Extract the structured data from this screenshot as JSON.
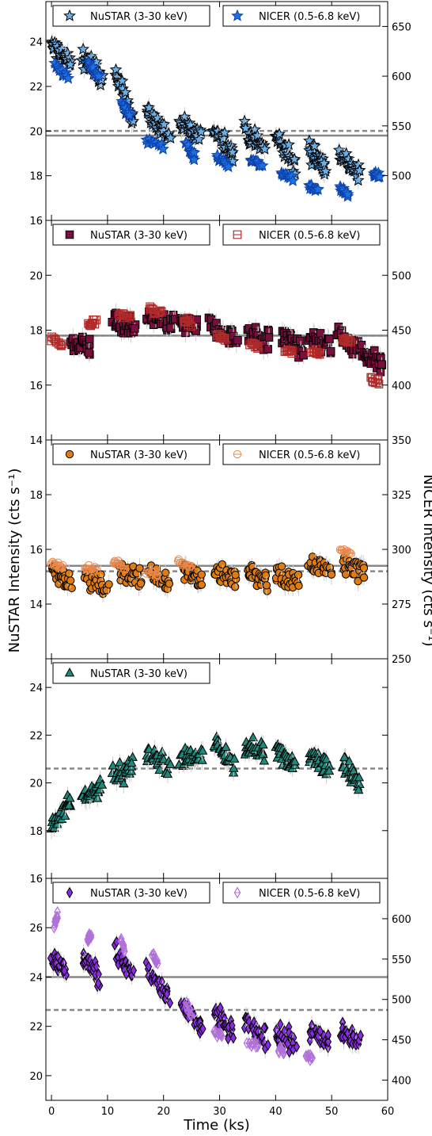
{
  "figure": {
    "ylabel_left": "NuSTAR Intensity (cts s⁻¹)",
    "ylabel_right": "NICER Intensity (cts s⁻¹)",
    "xlabel": "Time (ks)"
  },
  "colors": {
    "nustar": [
      "#6aaee6",
      "#7a0e3c",
      "#e07b10",
      "#1f8a7c",
      "#8a2be2"
    ],
    "nicer": [
      "#1f6fe0",
      "#b02a2a",
      "#e8874a",
      "",
      "#b070d8"
    ],
    "mean_line": "#888888",
    "error_bar": "#cfcfcf"
  },
  "chart_data": [
    {
      "type": "scatter",
      "marker": "star",
      "xlim": [
        -1,
        60
      ],
      "ylim": [
        16,
        25.8
      ],
      "yticks": [
        16,
        18,
        20,
        22,
        24
      ],
      "y2lim": [
        455,
        675
      ],
      "y2ticks": [
        500,
        550,
        600,
        650
      ],
      "xticks": [
        0,
        10,
        20,
        30,
        40,
        50,
        60
      ],
      "legend": {
        "placement": "top",
        "nustar": "NuSTAR (3-30 keV)",
        "nicer": "NICER (0.5-6.8 keV)"
      },
      "nustar_mean": 19.8,
      "nicer_mean_dashed": 545,
      "nustar_segments": [
        {
          "x": [
            0,
            3.5
          ],
          "y": [
            23.8,
            23.0
          ]
        },
        {
          "x": [
            5.5,
            9
          ],
          "y": [
            23.4,
            22.4
          ]
        },
        {
          "x": [
            11.5,
            14.5
          ],
          "y": [
            22.4,
            20.6
          ]
        },
        {
          "x": [
            17,
            21
          ],
          "y": [
            20.8,
            19.8
          ]
        },
        {
          "x": [
            23,
            26.5
          ],
          "y": [
            20.4,
            19.6
          ]
        },
        {
          "x": [
            29,
            32.5
          ],
          "y": [
            20.2,
            19.0
          ]
        },
        {
          "x": [
            34.5,
            38
          ],
          "y": [
            20.0,
            19.2
          ]
        },
        {
          "x": [
            40,
            43.5
          ],
          "y": [
            19.8,
            18.4
          ]
        },
        {
          "x": [
            46,
            49
          ],
          "y": [
            19.2,
            18.4
          ]
        },
        {
          "x": [
            51.5,
            55
          ],
          "y": [
            19.0,
            18.0
          ]
        }
      ],
      "nicer_segments": [
        {
          "x": [
            0.5,
            3
          ],
          "y": [
            612,
            598
          ]
        },
        {
          "x": [
            6.5,
            8.5
          ],
          "y": [
            612,
            600
          ]
        },
        {
          "x": [
            12.5,
            14
          ],
          "y": [
            575,
            560
          ]
        },
        {
          "x": [
            17,
            20
          ],
          "y": [
            536,
            530
          ]
        },
        {
          "x": [
            24,
            25.5
          ],
          "y": [
            532,
            518
          ]
        },
        {
          "x": [
            29.5,
            31.5
          ],
          "y": [
            518,
            512
          ]
        },
        {
          "x": [
            35.5,
            37.5
          ],
          "y": [
            516,
            510
          ]
        },
        {
          "x": [
            41,
            43
          ],
          "y": [
            502,
            498
          ]
        },
        {
          "x": [
            46,
            47.5
          ],
          "y": [
            490,
            486
          ]
        },
        {
          "x": [
            51.5,
            53
          ],
          "y": [
            486,
            480
          ]
        },
        {
          "x": [
            57.5,
            58.5
          ],
          "y": [
            500,
            500
          ]
        }
      ]
    },
    {
      "type": "scatter",
      "marker": "square",
      "xlim": [
        -1,
        60
      ],
      "ylim": [
        14,
        22
      ],
      "yticks": [
        14,
        16,
        18,
        20
      ],
      "y2lim": [
        350,
        550
      ],
      "y2ticks": [
        350,
        400,
        450,
        500
      ],
      "xticks": [
        0,
        10,
        20,
        30,
        40,
        50,
        60
      ],
      "legend": {
        "placement": "top",
        "nustar": "NuSTAR (3-30 keV)",
        "nicer": "NICER (0.5-6.8 keV)"
      },
      "nustar_mean": 17.8,
      "nicer_mean_dashed": 445,
      "nustar_segments": [
        {
          "x": [
            3.5,
            7
          ],
          "y": [
            17.5,
            17.5
          ]
        },
        {
          "x": [
            11,
            15
          ],
          "y": [
            18.3,
            18.1
          ]
        },
        {
          "x": [
            17,
            22
          ],
          "y": [
            18.4,
            18.2
          ]
        },
        {
          "x": [
            23,
            26
          ],
          "y": [
            18.3,
            18.0
          ]
        },
        {
          "x": [
            28,
            33
          ],
          "y": [
            18.2,
            17.6
          ]
        },
        {
          "x": [
            35,
            39
          ],
          "y": [
            17.9,
            17.5
          ]
        },
        {
          "x": [
            41,
            45
          ],
          "y": [
            17.8,
            17.3
          ]
        },
        {
          "x": [
            46,
            50
          ],
          "y": [
            17.8,
            17.4
          ]
        },
        {
          "x": [
            51,
            55
          ],
          "y": [
            17.9,
            17.3
          ]
        },
        {
          "x": [
            55.5,
            59
          ],
          "y": [
            17.2,
            16.8
          ]
        }
      ],
      "nicer_segments": [
        {
          "x": [
            0,
            2
          ],
          "y": [
            442,
            436
          ]
        },
        {
          "x": [
            6.5,
            8
          ],
          "y": [
            455,
            458
          ]
        },
        {
          "x": [
            12,
            14
          ],
          "y": [
            465,
            462
          ]
        },
        {
          "x": [
            17.5,
            19.5
          ],
          "y": [
            470,
            465
          ]
        },
        {
          "x": [
            23.5,
            25
          ],
          "y": [
            460,
            455
          ]
        },
        {
          "x": [
            29.5,
            31
          ],
          "y": [
            445,
            442
          ]
        },
        {
          "x": [
            35.5,
            37
          ],
          "y": [
            438,
            434
          ]
        },
        {
          "x": [
            41.5,
            43
          ],
          "y": [
            432,
            430
          ]
        },
        {
          "x": [
            46.5,
            48
          ],
          "y": [
            430,
            428
          ]
        },
        {
          "x": [
            52,
            53.5
          ],
          "y": [
            442,
            440
          ]
        },
        {
          "x": [
            57,
            58.5
          ],
          "y": [
            405,
            403
          ]
        }
      ]
    },
    {
      "type": "scatter",
      "marker": "circle",
      "xlim": [
        -1,
        60
      ],
      "ylim": [
        12,
        20
      ],
      "yticks": [
        14,
        16,
        18
      ],
      "y2lim": [
        250,
        350
      ],
      "y2ticks": [
        250,
        275,
        300,
        325
      ],
      "xticks": [
        0,
        10,
        20,
        30,
        40,
        50,
        60
      ],
      "legend": {
        "placement": "top",
        "nustar": "NuSTAR (3-30 keV)",
        "nicer": "NICER (0.5-6.8 keV)"
      },
      "nustar_mean": 15.4,
      "nicer_mean_dashed": 290,
      "nustar_segments": [
        {
          "x": [
            0,
            3.5
          ],
          "y": [
            15.4,
            14.7
          ]
        },
        {
          "x": [
            6,
            10
          ],
          "y": [
            15.0,
            14.6
          ]
        },
        {
          "x": [
            12,
            16
          ],
          "y": [
            15.2,
            14.9
          ]
        },
        {
          "x": [
            17.5,
            21
          ],
          "y": [
            15.1,
            14.9
          ]
        },
        {
          "x": [
            23.5,
            27
          ],
          "y": [
            15.3,
            14.8
          ]
        },
        {
          "x": [
            29,
            33
          ],
          "y": [
            15.2,
            14.8
          ]
        },
        {
          "x": [
            35,
            38.5
          ],
          "y": [
            15.2,
            14.8
          ]
        },
        {
          "x": [
            40,
            44
          ],
          "y": [
            15.1,
            14.7
          ]
        },
        {
          "x": [
            46,
            50
          ],
          "y": [
            15.4,
            15.3
          ]
        },
        {
          "x": [
            52,
            56
          ],
          "y": [
            15.5,
            15.2
          ]
        }
      ],
      "nicer_segments": [
        {
          "x": [
            0,
            2
          ],
          "y": [
            294,
            292
          ]
        },
        {
          "x": [
            6,
            8
          ],
          "y": [
            292,
            290
          ]
        },
        {
          "x": [
            11,
            13
          ],
          "y": [
            294,
            292
          ]
        },
        {
          "x": [
            17,
            19
          ],
          "y": [
            290,
            289
          ]
        },
        {
          "x": [
            22.5,
            25
          ],
          "y": [
            294,
            292
          ]
        },
        {
          "x": [
            51.5,
            53.5
          ],
          "y": [
            300,
            298
          ]
        }
      ]
    },
    {
      "type": "scatter",
      "marker": "triangle",
      "xlim": [
        -1,
        60
      ],
      "ylim": [
        16,
        25.2
      ],
      "yticks": [
        16,
        18,
        20,
        22,
        24
      ],
      "xticks": [
        0,
        10,
        20,
        30,
        40,
        50,
        60
      ],
      "legend": {
        "placement": "top-left",
        "nustar": "NuSTAR (3-30 keV)"
      },
      "nustar_mean_dashed": 20.6,
      "nustar_segments": [
        {
          "x": [
            0,
            3.5
          ],
          "y": [
            18.2,
            19.4
          ]
        },
        {
          "x": [
            5.5,
            9
          ],
          "y": [
            19.4,
            19.8
          ]
        },
        {
          "x": [
            11,
            14.5
          ],
          "y": [
            20.2,
            20.6
          ]
        },
        {
          "x": [
            17,
            21
          ],
          "y": [
            21.2,
            20.8
          ]
        },
        {
          "x": [
            23,
            27
          ],
          "y": [
            21.0,
            21.2
          ]
        },
        {
          "x": [
            29,
            32.5
          ],
          "y": [
            21.6,
            20.8
          ]
        },
        {
          "x": [
            34.5,
            38
          ],
          "y": [
            21.6,
            21.2
          ]
        },
        {
          "x": [
            40,
            43.5
          ],
          "y": [
            21.4,
            20.8
          ]
        },
        {
          "x": [
            46,
            49.5
          ],
          "y": [
            21.4,
            20.6
          ]
        },
        {
          "x": [
            52,
            55
          ],
          "y": [
            20.8,
            20.0
          ]
        }
      ]
    },
    {
      "type": "scatter",
      "marker": "diamond",
      "xlim": [
        -1,
        60
      ],
      "ylim": [
        19,
        28
      ],
      "yticks": [
        20,
        22,
        24,
        26
      ],
      "y2lim": [
        375,
        650
      ],
      "y2ticks": [
        400,
        450,
        500,
        550,
        600
      ],
      "xticks": [
        0,
        10,
        20,
        30,
        40,
        50,
        60
      ],
      "legend": {
        "placement": "top",
        "nustar": "NuSTAR (3-30 keV)",
        "nicer": "NICER (0.5-6.8 keV)"
      },
      "nustar_mean": 24.0,
      "nicer_mean_dashed": 487,
      "nustar_segments": [
        {
          "x": [
            0,
            2.5
          ],
          "y": [
            24.8,
            24.2
          ]
        },
        {
          "x": [
            5.5,
            8.5
          ],
          "y": [
            24.8,
            24.0
          ]
        },
        {
          "x": [
            11.5,
            14.5
          ],
          "y": [
            25.0,
            24.2
          ]
        },
        {
          "x": [
            17,
            21
          ],
          "y": [
            24.2,
            23.2
          ]
        },
        {
          "x": [
            23,
            27
          ],
          "y": [
            23.0,
            21.8
          ]
        },
        {
          "x": [
            29,
            32.5
          ],
          "y": [
            22.6,
            21.6
          ]
        },
        {
          "x": [
            34.5,
            38.5
          ],
          "y": [
            22.2,
            21.4
          ]
        },
        {
          "x": [
            40,
            43.5
          ],
          "y": [
            21.8,
            21.2
          ]
        },
        {
          "x": [
            46,
            49.5
          ],
          "y": [
            21.8,
            21.4
          ]
        },
        {
          "x": [
            51.5,
            55
          ],
          "y": [
            21.8,
            21.4
          ]
        }
      ],
      "nicer_segments": [
        {
          "x": [
            0.5,
            1
          ],
          "y": [
            590,
            605
          ]
        },
        {
          "x": [
            6.5,
            7
          ],
          "y": [
            575,
            580
          ]
        },
        {
          "x": [
            12.5,
            13
          ],
          "y": [
            575,
            560
          ]
        },
        {
          "x": [
            18,
            19
          ],
          "y": [
            555,
            545
          ]
        },
        {
          "x": [
            24,
            25
          ],
          "y": [
            495,
            480
          ]
        },
        {
          "x": [
            29,
            30.5
          ],
          "y": [
            460,
            455
          ]
        },
        {
          "x": [
            35,
            37
          ],
          "y": [
            447,
            443
          ]
        },
        {
          "x": [
            40.5,
            41.5
          ],
          "y": [
            438,
            436
          ]
        },
        {
          "x": [
            45.5,
            46.5
          ],
          "y": [
            430,
            428
          ]
        }
      ]
    }
  ]
}
